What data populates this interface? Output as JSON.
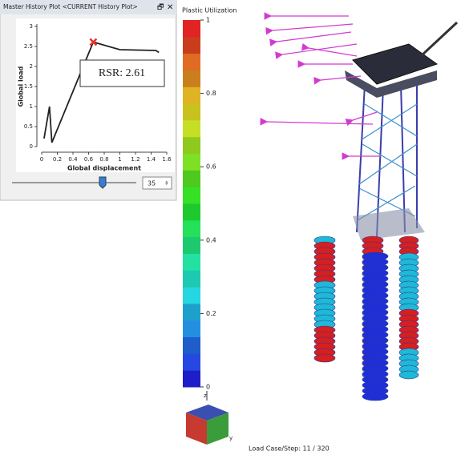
{
  "panel": {
    "title": "Master History Plot <CURRENT History Plot>",
    "chart": {
      "type": "line",
      "xlabel": "Global displacement",
      "ylabel": "Global load",
      "x": [
        0.03,
        0.1,
        0.13,
        0.66,
        1.0,
        1.46,
        1.5
      ],
      "values": [
        0.2,
        1.0,
        0.1,
        2.61,
        2.42,
        2.4,
        2.35
      ],
      "xlim": [
        0,
        1.6
      ],
      "ylim": [
        0,
        3
      ],
      "xticks": [
        0,
        0.2,
        0.4,
        0.6,
        0.8,
        1,
        1.2,
        1.4,
        1.6
      ],
      "yticks": [
        0,
        0.5,
        1,
        1.5,
        2,
        2.5,
        3
      ],
      "color": "#222222",
      "marker": {
        "x": 0.66,
        "y": 2.61,
        "color": "#e8322a"
      },
      "annotation": "RSR: 2.61"
    },
    "step": 35
  },
  "legend": {
    "title": "Plastic Utilization",
    "lim": [
      0,
      1
    ],
    "ticks": [
      0,
      0.2,
      0.4,
      0.6,
      0.8,
      1
    ]
  },
  "status": "Load Case/Step: 11 / 320"
}
